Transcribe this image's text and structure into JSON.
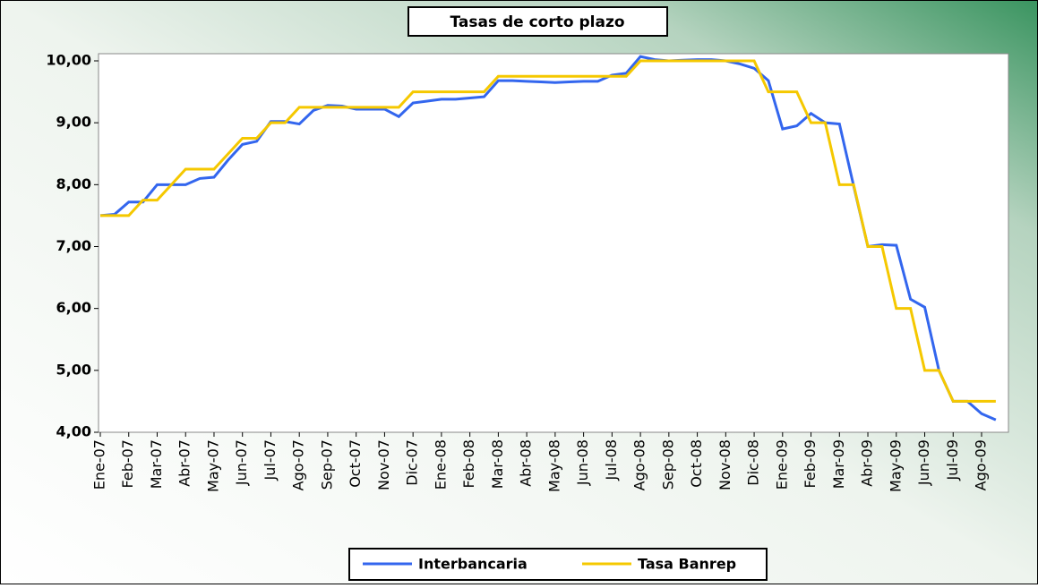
{
  "chart_data": {
    "type": "line",
    "title": "Tasas de corto plazo",
    "categories": [
      "Ene-07",
      null,
      "Feb-07",
      null,
      "Mar-07",
      null,
      "Abr-07",
      null,
      "May-07",
      null,
      "Jun-07",
      null,
      "Jul-07",
      null,
      "Ago-07",
      null,
      "Sep-07",
      null,
      "Oct-07",
      null,
      "Nov-07",
      null,
      "Dic-07",
      null,
      "Ene-08",
      null,
      "Feb-08",
      null,
      "Mar-08",
      null,
      "Abr-08",
      null,
      "May-08",
      null,
      "Jun-08",
      null,
      "Jul-08",
      null,
      "Ago-08",
      null,
      "Sep-08",
      null,
      "Oct-08",
      null,
      "Nov-08",
      null,
      "Dic-08",
      null,
      "Ene-09",
      null,
      "Feb-09",
      null,
      "Mar-09",
      null,
      "Abr-09",
      null,
      "May-09",
      null,
      "Jun-09",
      null,
      "Jul-09",
      null,
      "Ago-09",
      null
    ],
    "series": [
      {
        "name": "Interbancaria",
        "color": "#3366ee",
        "values": [
          7.5,
          7.52,
          7.72,
          7.72,
          8.0,
          8.0,
          8.0,
          8.1,
          8.12,
          8.4,
          8.65,
          8.7,
          9.02,
          9.02,
          8.98,
          9.2,
          9.28,
          9.27,
          9.22,
          9.22,
          9.22,
          9.1,
          9.32,
          9.35,
          9.38,
          9.38,
          9.4,
          9.42,
          9.68,
          9.68,
          9.67,
          9.66,
          9.65,
          9.66,
          9.67,
          9.67,
          9.77,
          9.8,
          10.07,
          10.02,
          10.0,
          10.01,
          10.02,
          10.02,
          10.0,
          9.95,
          9.88,
          9.68,
          8.9,
          8.95,
          9.15,
          9.0,
          8.98,
          7.98,
          7.0,
          7.03,
          7.02,
          6.15,
          6.02,
          5.0,
          4.5,
          4.5,
          4.3,
          4.2
        ]
      },
      {
        "name": "Tasa Banrep",
        "color": "#f5c800",
        "values": [
          7.5,
          7.5,
          7.5,
          7.75,
          7.75,
          8.0,
          8.25,
          8.25,
          8.25,
          8.5,
          8.75,
          8.75,
          9.0,
          9.0,
          9.25,
          9.25,
          9.25,
          9.25,
          9.25,
          9.25,
          9.25,
          9.25,
          9.5,
          9.5,
          9.5,
          9.5,
          9.5,
          9.5,
          9.75,
          9.75,
          9.75,
          9.75,
          9.75,
          9.75,
          9.75,
          9.75,
          9.75,
          9.75,
          10.0,
          10.0,
          10.0,
          10.0,
          10.0,
          10.0,
          10.0,
          10.0,
          10.0,
          9.5,
          9.5,
          9.5,
          9.0,
          9.0,
          8.0,
          8.0,
          7.0,
          7.0,
          6.0,
          6.0,
          5.0,
          5.0,
          4.5,
          4.5,
          4.5,
          4.5
        ]
      }
    ],
    "ylim": [
      4,
      10
    ],
    "yticks": [
      {
        "value": 4,
        "label": "4,00"
      },
      {
        "value": 5,
        "label": "5,00"
      },
      {
        "value": 6,
        "label": "6,00"
      },
      {
        "value": 7,
        "label": "7,00"
      },
      {
        "value": 8,
        "label": "8,00"
      },
      {
        "value": 9,
        "label": "9,00"
      },
      {
        "value": 10,
        "label": "10,00"
      }
    ],
    "grid": false,
    "legend": "bottom"
  }
}
